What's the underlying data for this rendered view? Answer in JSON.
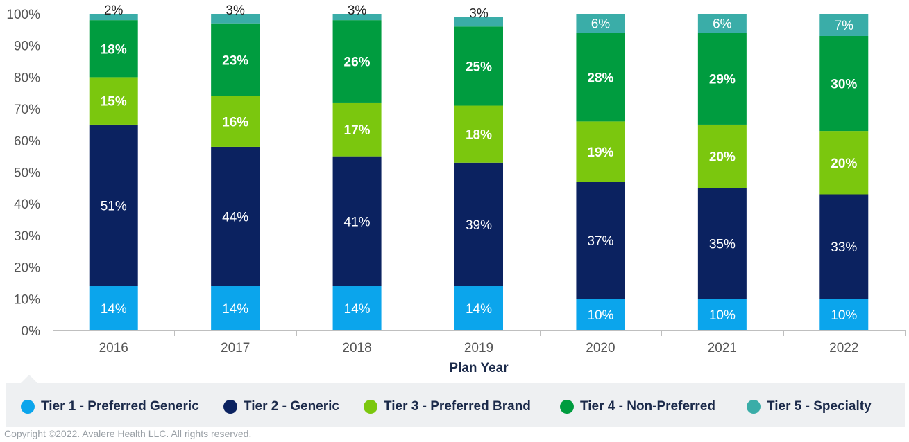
{
  "chart_data": {
    "type": "bar",
    "stacked": true,
    "title": "",
    "xlabel": "Plan Year",
    "ylabel": "",
    "ylim": [
      0,
      100
    ],
    "yticks": [
      "0%",
      "10%",
      "20%",
      "30%",
      "40%",
      "50%",
      "60%",
      "70%",
      "80%",
      "90%",
      "100%"
    ],
    "categories": [
      "2016",
      "2017",
      "2018",
      "2019",
      "2020",
      "2021",
      "2022"
    ],
    "series": [
      {
        "name": "Tier 1 - Preferred Generic",
        "color": "#0ba5ec",
        "values": [
          14,
          14,
          14,
          14,
          10,
          10,
          10
        ],
        "labels": [
          "14%",
          "14%",
          "14%",
          "14%",
          "10%",
          "10%",
          "10%"
        ]
      },
      {
        "name": "Tier 2 - Generic",
        "color": "#0b2260",
        "values": [
          51,
          44,
          41,
          39,
          37,
          35,
          33
        ],
        "labels": [
          "51%",
          "44%",
          "41%",
          "39%",
          "37%",
          "35%",
          "33%"
        ]
      },
      {
        "name": "Tier 3 - Preferred Brand",
        "color": "#7bc70e",
        "values": [
          15,
          16,
          17,
          18,
          19,
          20,
          20
        ],
        "labels": [
          "15%",
          "16%",
          "17%",
          "18%",
          "19%",
          "20%",
          "20%"
        ]
      },
      {
        "name": "Tier 4 - Non-Preferred",
        "color": "#009c3f",
        "values": [
          18,
          23,
          26,
          25,
          28,
          29,
          30
        ],
        "labels": [
          "18%",
          "23%",
          "26%",
          "25%",
          "28%",
          "29%",
          "30%"
        ]
      },
      {
        "name": "Tier 5 - Specialty",
        "color": "#3aada8",
        "values": [
          2,
          3,
          3,
          3,
          6,
          6,
          7
        ],
        "labels": [
          "2%",
          "3%",
          "3%",
          "3%",
          "6%",
          "6%",
          "7%"
        ]
      }
    ],
    "legend_position": "bottom",
    "grid": false
  },
  "footer": {
    "copyright": "Copyright ©2022. Avalere Health LLC. All rights reserved."
  }
}
